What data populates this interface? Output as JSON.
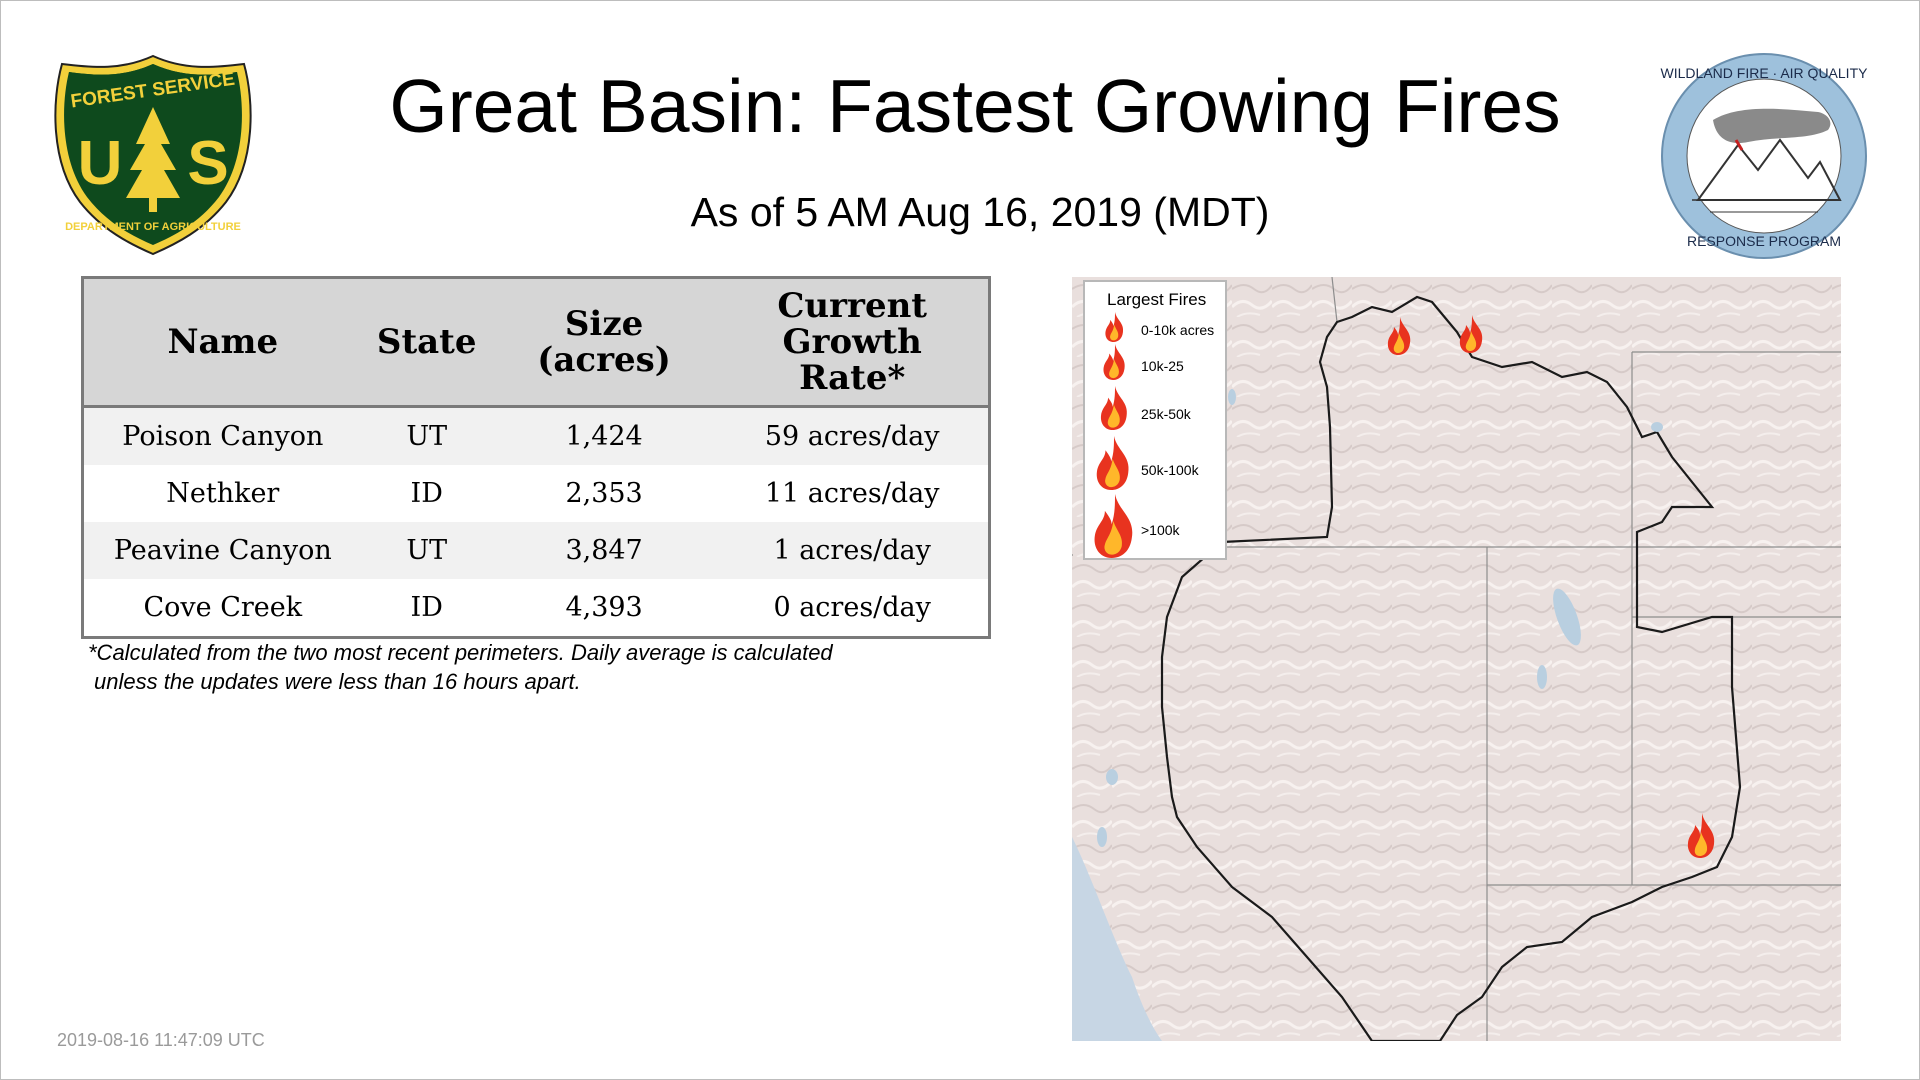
{
  "title": "Great Basin: Fastest Growing Fires",
  "subtitle": "As of  5 AM Aug 16, 2019 (MDT)",
  "logos": {
    "forest_service": {
      "top_text": "FOREST SERVICE",
      "letters": "U S",
      "bottom_text": "DEPARTMENT OF AGRICULTURE"
    },
    "wildland_fire": {
      "top_text": "WILDLAND FIRE · AIR QUALITY",
      "bottom_text": "RESPONSE PROGRAM"
    }
  },
  "table": {
    "headers": {
      "name": "Name",
      "state": "State",
      "size_l1": "Size",
      "size_l2": "(acres)",
      "rate_l1": "Current",
      "rate_l2": "Growth",
      "rate_l3": "Rate*"
    },
    "rows": [
      {
        "name": "Poison Canyon",
        "state": "UT",
        "size": "1,424",
        "rate": "59 acres/day"
      },
      {
        "name": "Nethker",
        "state": "ID",
        "size": "2,353",
        "rate": "11 acres/day"
      },
      {
        "name": "Peavine Canyon",
        "state": "UT",
        "size": "3,847",
        "rate": "1 acres/day"
      },
      {
        "name": "Cove Creek",
        "state": "ID",
        "size": "4,393",
        "rate": "0 acres/day"
      }
    ]
  },
  "footnote": {
    "line1": "*Calculated from the two most recent perimeters. Daily average is calculated",
    "line2": "unless the updates were less than 16 hours apart."
  },
  "timestamp": "2019-08-16 11:47:09 UTC",
  "legend": {
    "title": "Largest Fires",
    "items": [
      "0-10k acres",
      "10k-25",
      "25k-50k",
      "50k-100k",
      ">100k"
    ]
  },
  "colors": {
    "flame_outer": "#e8331f",
    "flame_inner": "#ffb72a",
    "fs_green": "#0e4a1d",
    "fs_yellow": "#f2d03b",
    "wf_blue": "#9ec1dc"
  }
}
